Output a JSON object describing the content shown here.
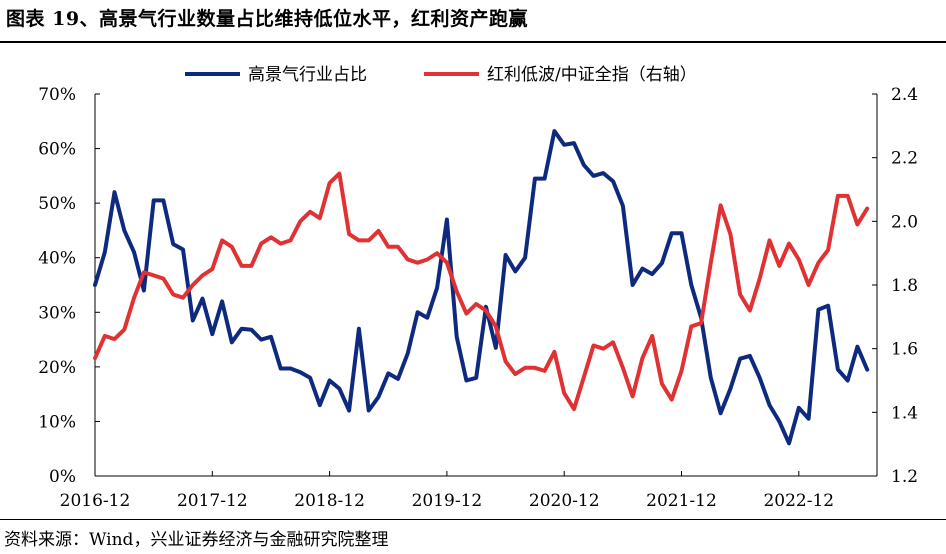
{
  "figure": {
    "title": "图表 19、高景气行业数量占比维持低位水平，红利资产跑赢",
    "source": "资料来源：Wind，兴业证券经济与金融研究院整理"
  },
  "chart_data": {
    "type": "line",
    "x_tick_labels": [
      "2016-12",
      "2017-12",
      "2018-12",
      "2019-12",
      "2020-12",
      "2021-12",
      "2022-12"
    ],
    "x_tick_positions": [
      0,
      12,
      24,
      36,
      48,
      60,
      72
    ],
    "xlim": [
      0,
      80
    ],
    "left_axis": {
      "ylim": [
        0,
        0.7
      ],
      "ticks": [
        0,
        0.1,
        0.2,
        0.3,
        0.4,
        0.5,
        0.6,
        0.7
      ],
      "tick_labels": [
        "0%",
        "10%",
        "20%",
        "30%",
        "40%",
        "50%",
        "60%",
        "70%"
      ]
    },
    "right_axis": {
      "ylim": [
        1.2,
        2.4
      ],
      "ticks": [
        1.2,
        1.4,
        1.6,
        1.8,
        2.0,
        2.2,
        2.4
      ],
      "tick_labels": [
        "1.2",
        "1.4",
        "1.6",
        "1.8",
        "2.0",
        "2.2",
        "2.4"
      ]
    },
    "legend_position": "top-center",
    "grid": false,
    "series": [
      {
        "name": "高景气行业占比",
        "axis": "left",
        "color": "#0e2a7e",
        "values": [
          0.35,
          0.41,
          0.52,
          0.45,
          0.41,
          0.34,
          0.505,
          0.505,
          0.425,
          0.415,
          0.285,
          0.325,
          0.26,
          0.32,
          0.245,
          0.27,
          0.268,
          0.25,
          0.255,
          0.197,
          0.197,
          0.19,
          0.18,
          0.13,
          0.175,
          0.16,
          0.12,
          0.27,
          0.12,
          0.145,
          0.188,
          0.178,
          0.225,
          0.3,
          0.29,
          0.345,
          0.47,
          0.255,
          0.175,
          0.18,
          0.31,
          0.235,
          0.405,
          0.375,
          0.4,
          0.545,
          0.545,
          0.632,
          0.607,
          0.61,
          0.57,
          0.55,
          0.555,
          0.54,
          0.495,
          0.35,
          0.38,
          0.37,
          0.39,
          0.445,
          0.445,
          0.35,
          0.29,
          0.18,
          0.115,
          0.16,
          0.215,
          0.22,
          0.18,
          0.13,
          0.1,
          0.06,
          0.125,
          0.105,
          0.305,
          0.312,
          0.195,
          0.175,
          0.237,
          0.195
        ]
      },
      {
        "name": "红利低波/中证全指（右轴）",
        "axis": "right",
        "color": "#e03232",
        "values": [
          1.57,
          1.64,
          1.63,
          1.66,
          1.76,
          1.84,
          1.83,
          1.82,
          1.77,
          1.76,
          1.8,
          1.83,
          1.85,
          1.94,
          1.92,
          1.86,
          1.86,
          1.93,
          1.95,
          1.93,
          1.94,
          2.0,
          2.03,
          2.01,
          2.12,
          2.15,
          1.96,
          1.94,
          1.94,
          1.97,
          1.92,
          1.92,
          1.88,
          1.87,
          1.88,
          1.9,
          1.87,
          1.78,
          1.71,
          1.74,
          1.72,
          1.67,
          1.56,
          1.52,
          1.54,
          1.54,
          1.53,
          1.59,
          1.46,
          1.41,
          1.51,
          1.61,
          1.6,
          1.62,
          1.54,
          1.45,
          1.57,
          1.64,
          1.49,
          1.44,
          1.53,
          1.67,
          1.68,
          1.87,
          2.05,
          1.96,
          1.77,
          1.72,
          1.82,
          1.94,
          1.86,
          1.93,
          1.88,
          1.8,
          1.87,
          1.91,
          2.08,
          2.08,
          1.99,
          2.04
        ]
      }
    ]
  }
}
